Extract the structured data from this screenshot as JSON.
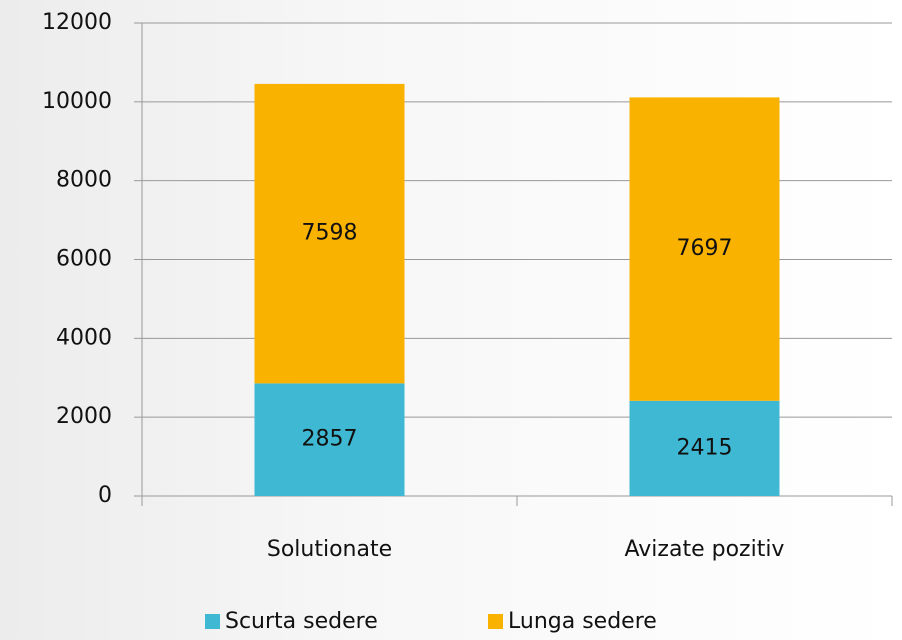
{
  "chart_data": {
    "type": "stacked_bar",
    "categories": [
      "Solutionate",
      "Avizate pozitiv"
    ],
    "series": [
      {
        "name": "Scurta sedere",
        "color": "#3fb9d3",
        "values": [
          2857,
          2415
        ]
      },
      {
        "name": "Lunga sedere",
        "color": "#f9b200",
        "values": [
          7598,
          7697
        ]
      }
    ],
    "ylim": [
      0,
      12000
    ],
    "yticks": [
      0,
      2000,
      4000,
      6000,
      8000,
      10000,
      12000
    ],
    "grid": true,
    "legend": "bottom"
  }
}
